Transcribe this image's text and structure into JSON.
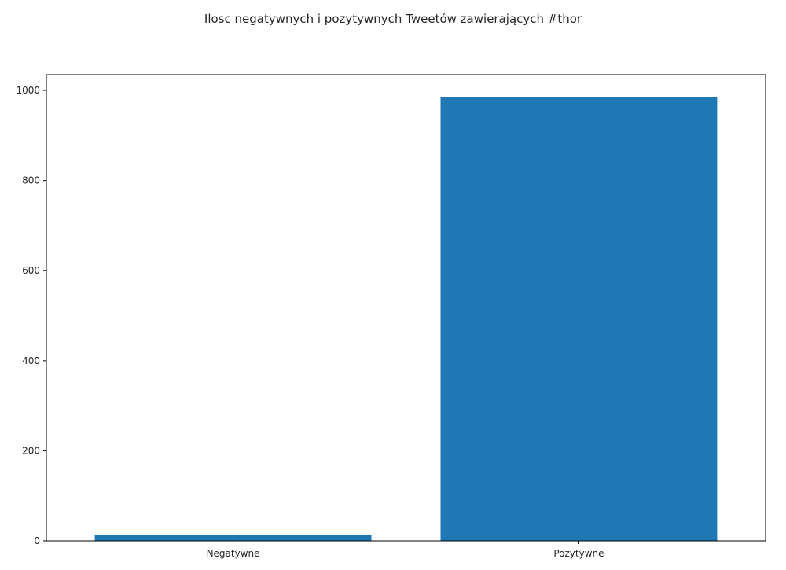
{
  "chart_data": {
    "type": "bar",
    "title": "Ilosc negatywnych i pozytywnych Tweetów zawierających #thor",
    "xlabel": "",
    "ylabel": "",
    "categories": [
      "Negatywne",
      "Pozytywne"
    ],
    "values": [
      14,
      986
    ],
    "ylim": [
      0,
      1035
    ],
    "yticks": [
      0,
      200,
      400,
      600,
      800,
      1000
    ],
    "bar_color": "#1f77b4",
    "grid": false,
    "legend": "none"
  }
}
